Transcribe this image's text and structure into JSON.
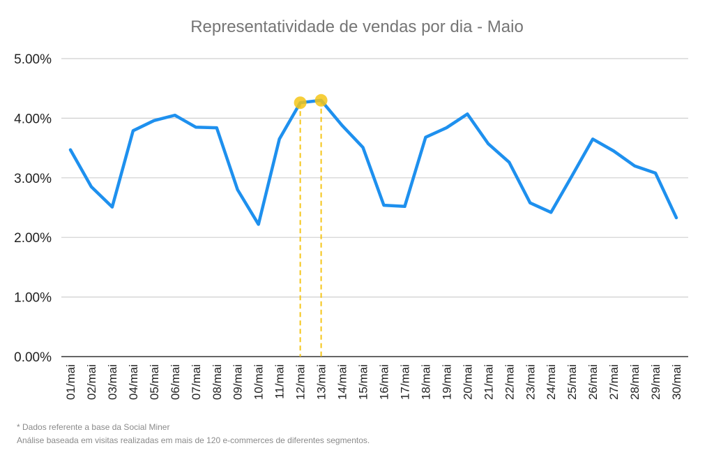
{
  "chart_data": {
    "type": "line",
    "title": "Representatividade de vendas por dia - Maio",
    "xlabel": "",
    "ylabel": "",
    "ylim": [
      0,
      5
    ],
    "y_ticks": [
      "0.00%",
      "1.00%",
      "2.00%",
      "3.00%",
      "4.00%",
      "5.00%"
    ],
    "grid": true,
    "categories": [
      "01/mai",
      "02/mai",
      "03/mai",
      "04/mai",
      "05/mai",
      "06/mai",
      "07/mai",
      "08/mai",
      "09/mai",
      "10/mai",
      "11/mai",
      "12/mai",
      "13/mai",
      "14/mai",
      "15/mai",
      "16/mai",
      "17/mai",
      "18/mai",
      "19/mai",
      "20/mai",
      "21/mai",
      "22/mai",
      "23/mai",
      "24/mai",
      "25/mai",
      "26/mai",
      "27/mai",
      "28/mai",
      "29/mai",
      "30/mai"
    ],
    "series": [
      {
        "values": [
          3.47,
          2.85,
          2.51,
          3.79,
          3.96,
          4.05,
          3.85,
          3.84,
          2.8,
          2.22,
          3.65,
          4.26,
          4.3,
          3.88,
          3.51,
          2.54,
          2.52,
          3.68,
          3.84,
          4.07,
          3.57,
          3.26,
          2.58,
          2.42,
          3.03,
          3.65,
          3.45,
          3.2,
          3.08,
          2.33
        ],
        "color": "#1e90ee"
      }
    ],
    "highlighted_points": [
      "12/mai",
      "13/mai"
    ],
    "highlight_color": "#f5c518"
  },
  "footnote": {
    "line1": "* Dados referente a base  da Social Miner",
    "line2": "Análise baseada em visitas realizadas em mais de 120 e-commerces de diferentes segmentos."
  }
}
